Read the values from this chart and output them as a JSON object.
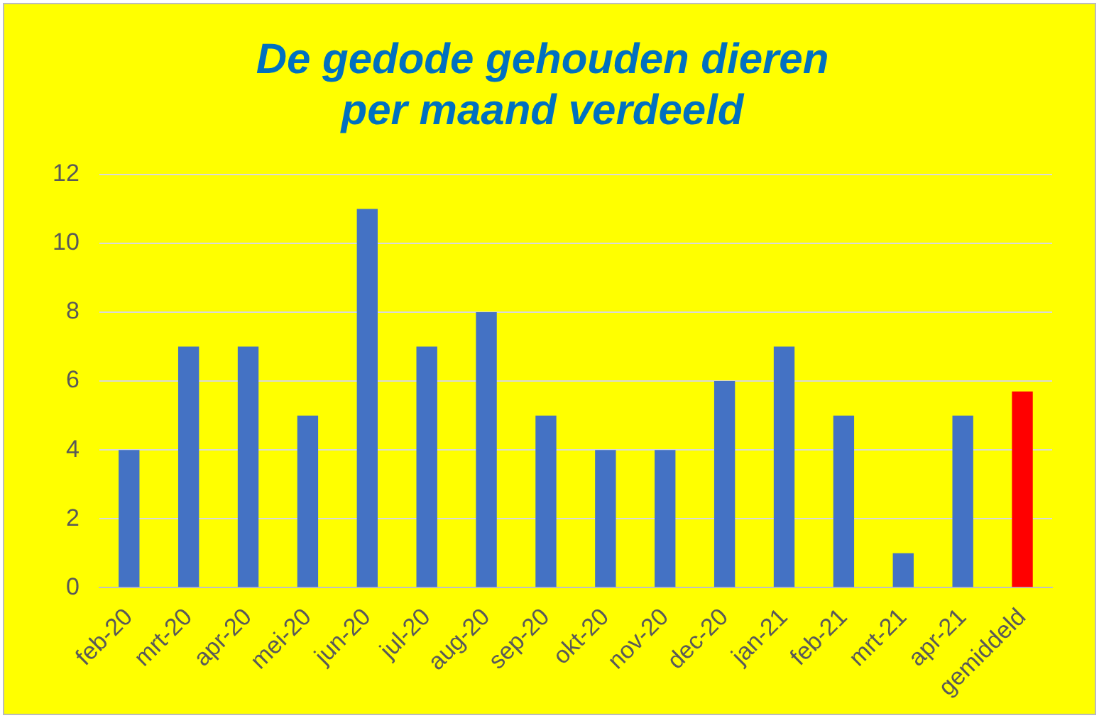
{
  "chart_data": {
    "type": "bar",
    "title": "De gedode gehouden dieren\nper maand verdeeld",
    "categories": [
      "feb-20",
      "mrt-20",
      "apr-20",
      "mei-20",
      "jun-20",
      "jul-20",
      "aug-20",
      "sep-20",
      "okt-20",
      "nov-20",
      "dec-20",
      "jan-21",
      "feb-21",
      "mrt-21",
      "apr-21",
      "gemiddeld"
    ],
    "values": [
      4,
      7,
      7,
      5,
      11,
      7,
      8,
      5,
      4,
      4,
      6,
      7,
      5,
      1,
      5,
      5.7
    ],
    "colors": [
      "#4472c4",
      "#4472c4",
      "#4472c4",
      "#4472c4",
      "#4472c4",
      "#4472c4",
      "#4472c4",
      "#4472c4",
      "#4472c4",
      "#4472c4",
      "#4472c4",
      "#4472c4",
      "#4472c4",
      "#4472c4",
      "#4472c4",
      "#ff0000"
    ],
    "ylim": [
      0,
      12
    ],
    "yticks": [
      0,
      2,
      4,
      6,
      8,
      10,
      12
    ],
    "grid": "y",
    "legend": false
  }
}
